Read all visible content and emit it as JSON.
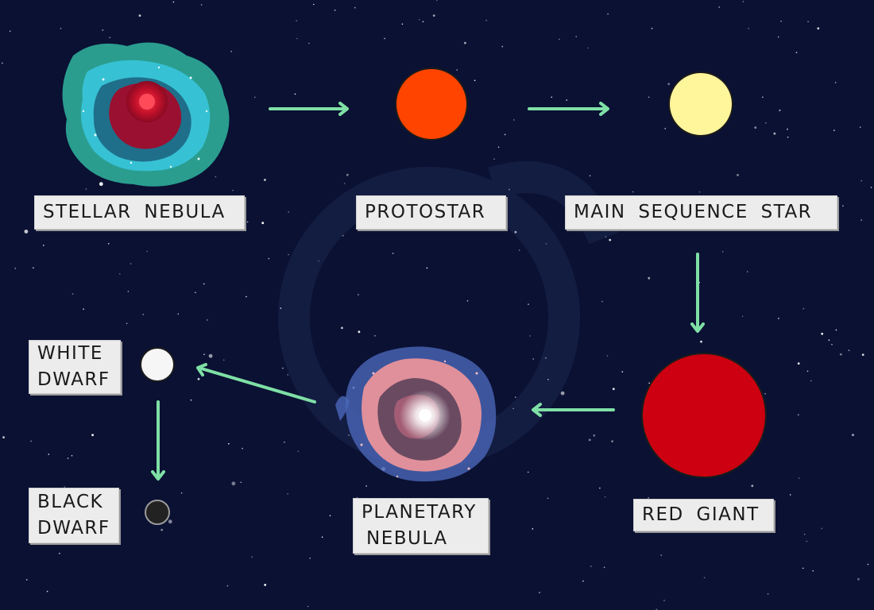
{
  "colors": {
    "background": "#0a1133",
    "arrow": "#7fe0a6",
    "protostar": "#ff4400",
    "main_sequence_star": "#fff59b",
    "red_giant": "#cc0010",
    "white_dwarf": "#f6f6f6",
    "black_dwarf": "#222222",
    "nebula_teal": "#2a9d8f",
    "nebula_cyan": "#39c8e0",
    "nebula_red": "#c0102a",
    "planetary_pink": "#e0909a",
    "planetary_blue": "#4a66b8",
    "label_background": "#ececec"
  },
  "stages": [
    {
      "id": "stellar-nebula",
      "label": "STELLAR NEBULA",
      "icon": "stellar-nebula-icon"
    },
    {
      "id": "protostar",
      "label": "PROTOSTAR",
      "icon": "protostar-icon"
    },
    {
      "id": "main-sequence-star",
      "label": "MAIN SEQUENCE STAR",
      "icon": "main-sequence-star-icon"
    },
    {
      "id": "red-giant",
      "label": "RED GIANT",
      "icon": "red-giant-icon"
    },
    {
      "id": "planetary-nebula",
      "label_lines": [
        "PLANETARY",
        "NEBULA"
      ],
      "icon": "planetary-nebula-icon"
    },
    {
      "id": "white-dwarf",
      "label_lines": [
        "WHITE",
        "DWARF"
      ],
      "icon": "white-dwarf-icon"
    },
    {
      "id": "black-dwarf",
      "label_lines": [
        "BLACK",
        "DWARF"
      ],
      "icon": "black-dwarf-icon"
    }
  ],
  "arrows": [
    {
      "from": "stellar-nebula",
      "to": "protostar"
    },
    {
      "from": "protostar",
      "to": "main-sequence-star"
    },
    {
      "from": "main-sequence-star",
      "to": "red-giant"
    },
    {
      "from": "red-giant",
      "to": "planetary-nebula"
    },
    {
      "from": "planetary-nebula",
      "to": "white-dwarf"
    },
    {
      "from": "white-dwarf",
      "to": "black-dwarf"
    }
  ]
}
